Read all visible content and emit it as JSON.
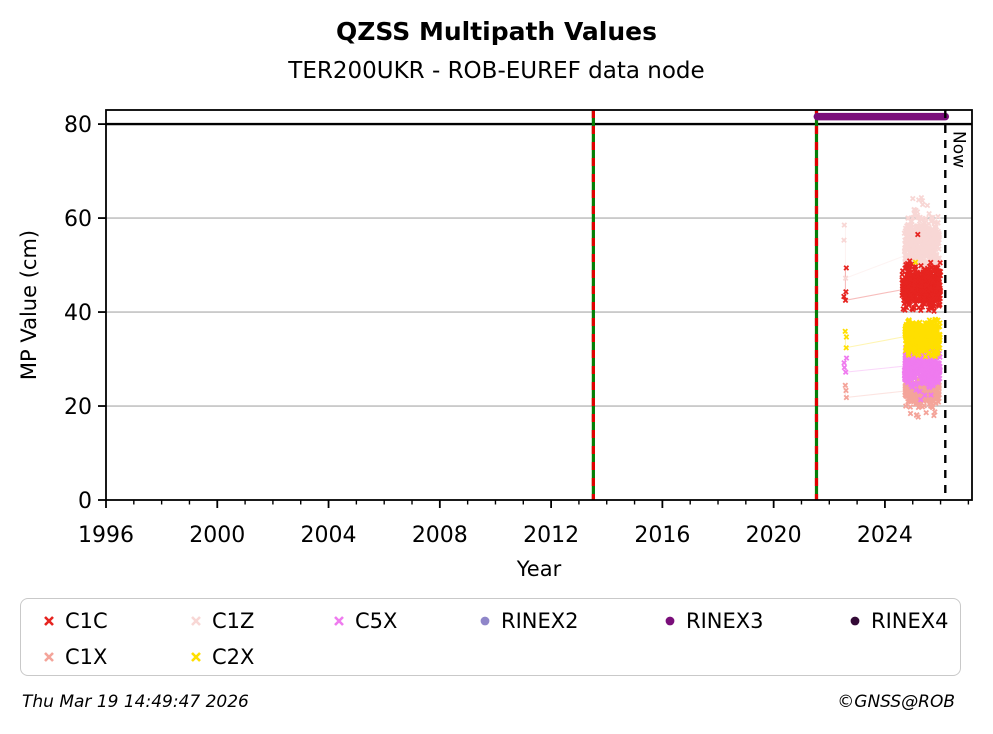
{
  "header": {
    "title": "QZSS Multipath Values",
    "subtitle": "TER200UKR - ROB-EUREF data node"
  },
  "footer": {
    "timestamp": "Thu Mar 19 14:49:47 2026",
    "copyright": "©GNSS@ROB"
  },
  "legend": {
    "items": [
      {
        "label": "C1C",
        "marker": "x",
        "color": "#e62420",
        "row": 0,
        "col": 0
      },
      {
        "label": "C1Z",
        "marker": "x",
        "color": "#f8d7d5",
        "row": 0,
        "col": 1
      },
      {
        "label": "C5X",
        "marker": "x",
        "color": "#ef7bef",
        "row": 0,
        "col": 2
      },
      {
        "label": "RINEX2",
        "marker": "circle",
        "color": "#8f86c9",
        "row": 0,
        "col": 3
      },
      {
        "label": "RINEX3",
        "marker": "circle",
        "color": "#7a0e7a",
        "row": 0,
        "col": 4
      },
      {
        "label": "RINEX4",
        "marker": "circle",
        "color": "#330a36",
        "row": 0,
        "col": 5
      },
      {
        "label": "C1X",
        "marker": "x",
        "color": "#f4a49a",
        "row": 1,
        "col": 0
      },
      {
        "label": "C2X",
        "marker": "x",
        "color": "#ffdf00",
        "row": 1,
        "col": 1
      }
    ]
  },
  "chart_data": {
    "type": "scatter",
    "title": "QZSS Multipath Values",
    "subtitle": "TER200UKR - ROB-EUREF data node",
    "xlabel": "Year",
    "ylabel": "MP Value (cm)",
    "xlim": [
      1996,
      2027.13
    ],
    "ylim": [
      0,
      83
    ],
    "xticks": [
      1996,
      2000,
      2004,
      2008,
      2012,
      2016,
      2020,
      2024
    ],
    "yticks": [
      0,
      20,
      40,
      60,
      80
    ],
    "grid_y_values": [
      20,
      40,
      60
    ],
    "grid_color": "#b8b8b8",
    "reference_line": {
      "y": 80,
      "color": "#000000"
    },
    "event_lines": {
      "years": [
        2013.52,
        2021.54
      ],
      "green": "#067d06",
      "red": "#e00000"
    },
    "now_marker": {
      "year": 2026.17,
      "label": "Now",
      "color": "#000000"
    },
    "rinex3_bar": {
      "name": "RINEX3",
      "x0": 2021.57,
      "x1": 2026.17,
      "y": 81.6,
      "color": "#7a0e7a"
    },
    "series": [
      {
        "name": "C1Z",
        "color": "#f8d7d5",
        "marker": "x",
        "clusters": [
          {
            "x0": 2024.7,
            "x1": 2025.95,
            "mean": 54.0,
            "sd": 3.1,
            "min": 46.5,
            "max": 62.0,
            "n": 560
          },
          {
            "x0": 2024.85,
            "x1": 2025.65,
            "min": 59.0,
            "max": 64.6,
            "n": 12,
            "uniform": true
          }
        ],
        "isolated": {
          "x": 2022.58,
          "values": [
            58.5,
            55.3,
            47.2
          ]
        },
        "connector": [
          [
            2022.58,
            58.5
          ],
          [
            2022.58,
            47.2
          ],
          [
            2024.72,
            52.0
          ]
        ]
      },
      {
        "name": "C1C",
        "color": "#e62420",
        "marker": "x",
        "clusters": [
          {
            "x0": 2024.62,
            "x1": 2026.0,
            "mean": 45.3,
            "sd": 2.1,
            "min": 40.0,
            "max": 51.2,
            "n": 540
          }
        ],
        "extra_points": [
          [
            2025.18,
            56.5
          ]
        ],
        "isolated": {
          "x": 2022.58,
          "values": [
            49.4,
            44.3,
            43.3,
            42.5
          ]
        },
        "connector": [
          [
            2022.58,
            49.4
          ],
          [
            2022.58,
            42.5
          ],
          [
            2024.66,
            44.8
          ]
        ]
      },
      {
        "name": "C1X",
        "color": "#f4a49a",
        "marker": "x",
        "clusters": [
          {
            "x0": 2024.72,
            "x1": 2025.95,
            "mean": 23.2,
            "sd": 1.5,
            "min": 19.6,
            "max": 26.6,
            "n": 340
          },
          {
            "x0": 2024.85,
            "x1": 2025.85,
            "min": 17.6,
            "max": 19.4,
            "n": 7,
            "uniform": true
          }
        ],
        "isolated": {
          "x": 2022.58,
          "values": [
            24.4,
            23.3,
            21.8
          ]
        },
        "connector": [
          [
            2022.58,
            24.4
          ],
          [
            2022.58,
            21.8
          ],
          [
            2024.74,
            23.2
          ]
        ]
      },
      {
        "name": "C5X",
        "color": "#ef7bef",
        "marker": "x",
        "clusters": [
          {
            "x0": 2024.7,
            "x1": 2025.98,
            "mean": 28.3,
            "sd": 2.0,
            "min": 23.6,
            "max": 33.2,
            "n": 520
          },
          {
            "x0": 2024.9,
            "x1": 2025.7,
            "min": 21.0,
            "max": 23.4,
            "n": 5,
            "uniform": true
          }
        ],
        "isolated": {
          "x": 2022.58,
          "values": [
            30.2,
            29.2,
            28.2,
            27.2
          ]
        },
        "connector": [
          [
            2022.58,
            30.2
          ],
          [
            2022.58,
            27.2
          ],
          [
            2024.72,
            28.5
          ]
        ]
      },
      {
        "name": "C2X",
        "color": "#ffdf00",
        "marker": "x",
        "clusters": [
          {
            "x0": 2024.72,
            "x1": 2025.98,
            "mean": 34.6,
            "sd": 1.8,
            "min": 30.3,
            "max": 38.6,
            "n": 400
          }
        ],
        "extra_points": [
          [
            2025.1,
            50.6
          ]
        ],
        "isolated": {
          "x": 2022.58,
          "values": [
            35.9,
            34.7,
            32.4
          ]
        },
        "connector": [
          [
            2022.58,
            35.9
          ],
          [
            2022.58,
            32.4
          ],
          [
            2024.74,
            34.8
          ]
        ]
      }
    ]
  }
}
